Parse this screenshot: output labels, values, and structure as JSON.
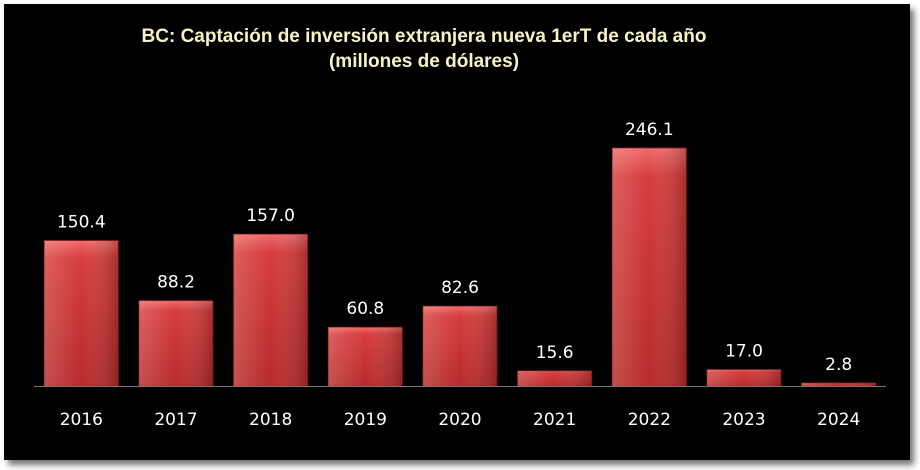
{
  "chart_data": {
    "type": "bar",
    "title": "BC: Captación de inversión extranjera nueva 1erT de cada año",
    "subtitle": "(millones de dólares)",
    "categories": [
      "2016",
      "2017",
      "2018",
      "2019",
      "2020",
      "2021",
      "2022",
      "2023",
      "2024"
    ],
    "values": [
      150.4,
      88.2,
      157.0,
      60.8,
      82.6,
      15.6,
      246.1,
      17.0,
      2.8
    ],
    "value_labels": [
      "150.4",
      "88.2",
      "157.0",
      "60.8",
      "82.6",
      "15.6",
      "246.1",
      "17.0",
      "2.8"
    ],
    "xlabel": "",
    "ylabel": "",
    "ylim": [
      0,
      246.1
    ],
    "grid": false,
    "legend": "none",
    "colors": {
      "background": "#000000",
      "bar": "#d63c3c",
      "bar_highlight": "#ee6a6a",
      "bar_shadow": "#8e1e1e",
      "title": "#f7f3c6",
      "labels": "#ffffff",
      "axis": "#7a7a7a"
    }
  }
}
